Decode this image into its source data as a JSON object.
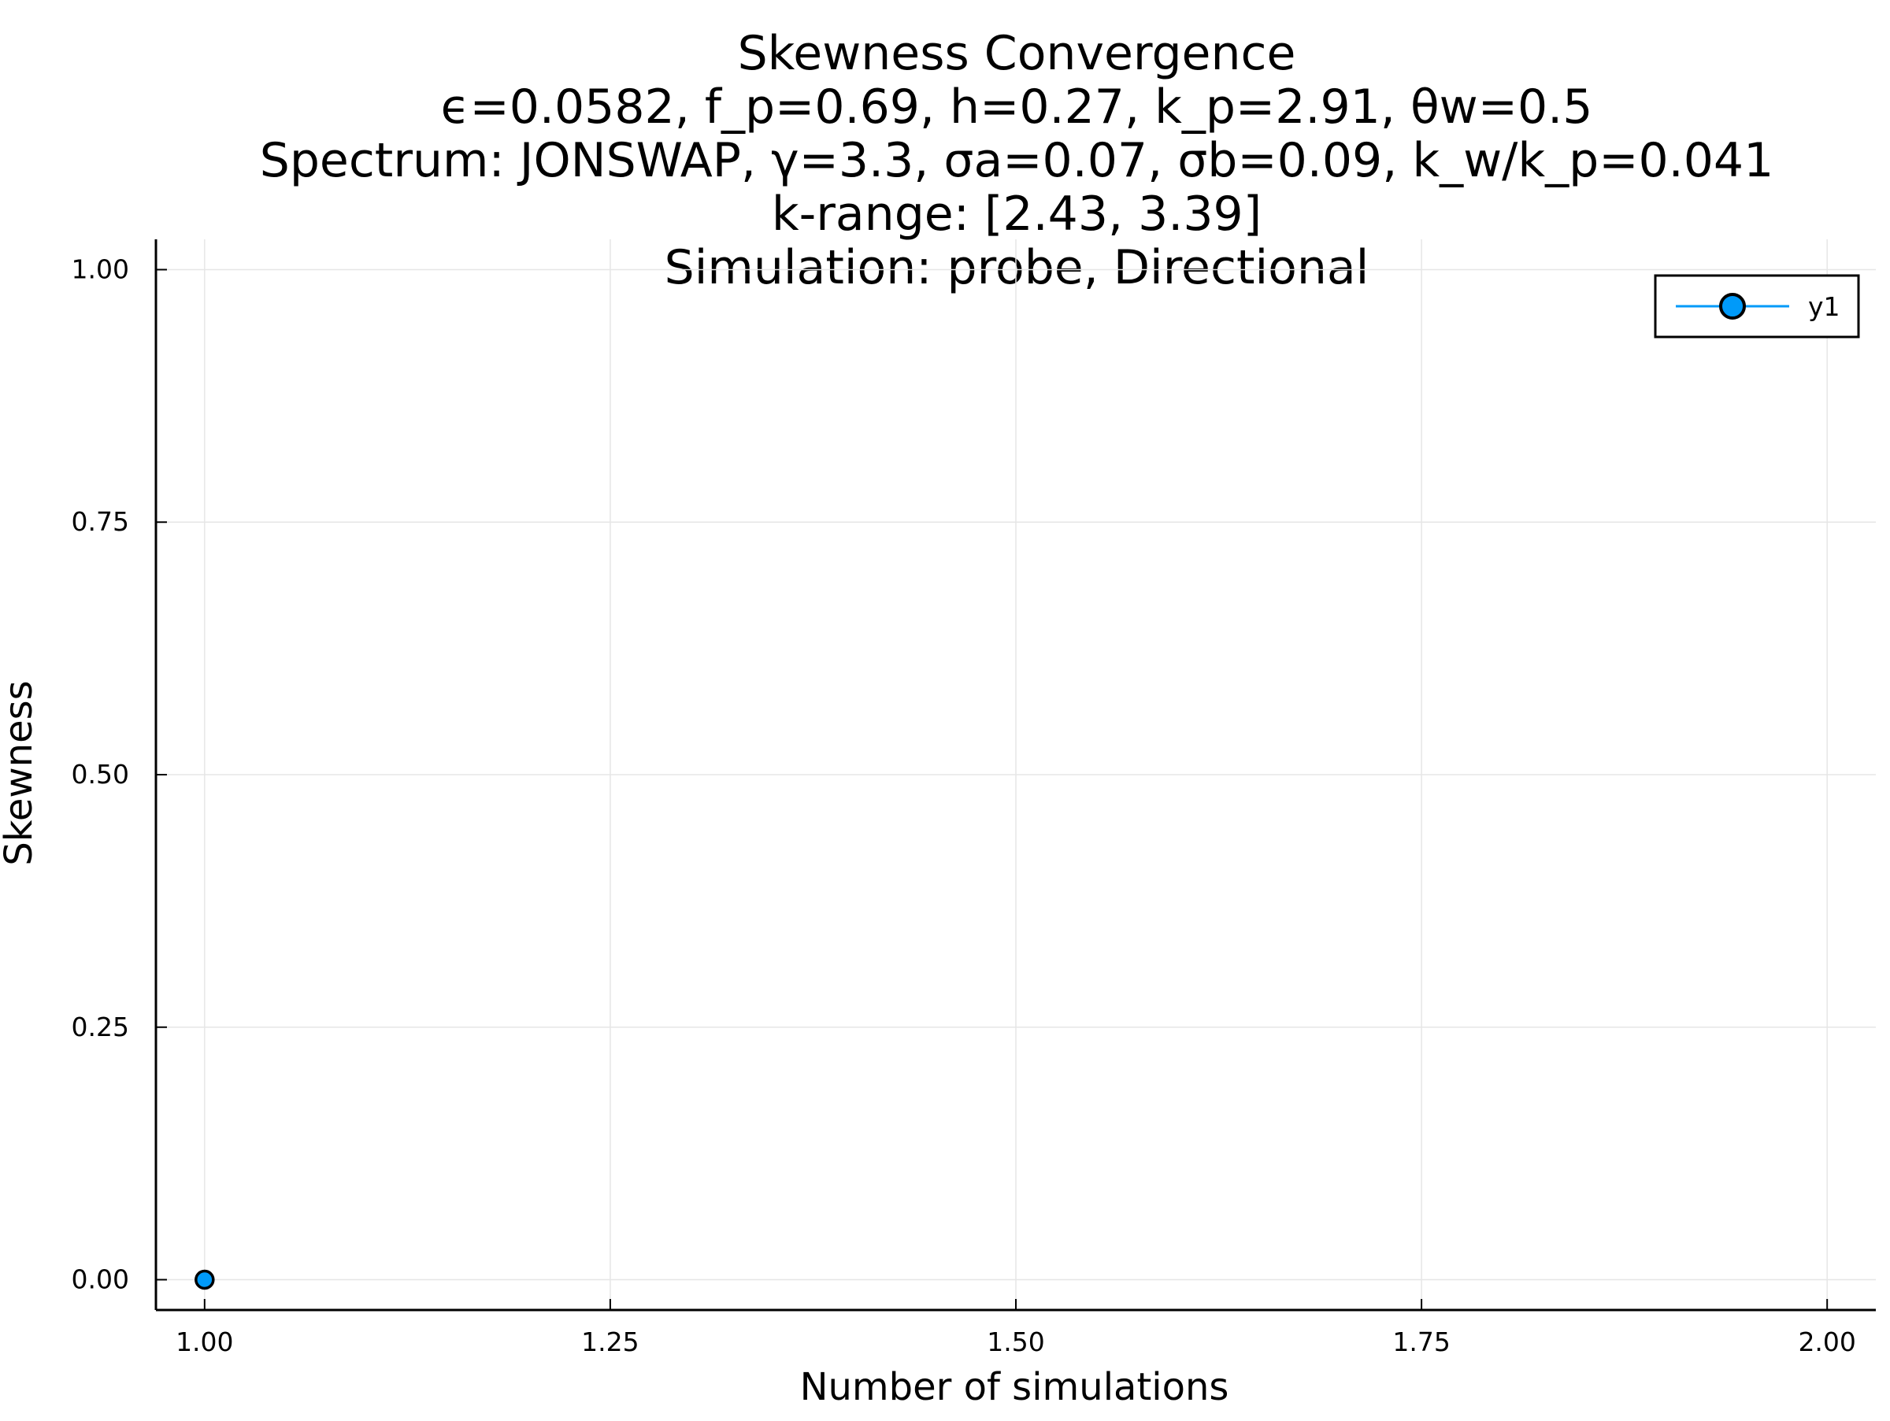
{
  "chart_data": {
    "type": "line",
    "title_lines": [
      "Skewness Convergence",
      "ϵ=0.0582, f_p=0.69, h=0.27, k_p=2.91, θw=0.5",
      "Spectrum: JONSWAP, γ=3.3, σa=0.07, σb=0.09, k_w/k_p=0.041",
      "k-range: [2.43, 3.39]",
      "Simulation: probe, Directional"
    ],
    "xlabel": "Number of simulations",
    "ylabel": "Skewness",
    "xlim": [
      0.97,
      2.03
    ],
    "ylim": [
      -0.03,
      1.03
    ],
    "x_ticks": [
      1.0,
      1.25,
      1.5,
      1.75,
      2.0
    ],
    "x_tick_labels": [
      "1.00",
      "1.25",
      "1.50",
      "1.75",
      "2.00"
    ],
    "y_ticks": [
      0.0,
      0.25,
      0.5,
      0.75,
      1.0
    ],
    "y_tick_labels": [
      "0.00",
      "0.25",
      "0.50",
      "0.75",
      "1.00"
    ],
    "grid": true,
    "legend_position": "top-right",
    "series": [
      {
        "name": "y1",
        "color": "#009af9",
        "marker": "circle",
        "x": [
          1
        ],
        "y": [
          0.0
        ]
      }
    ]
  }
}
